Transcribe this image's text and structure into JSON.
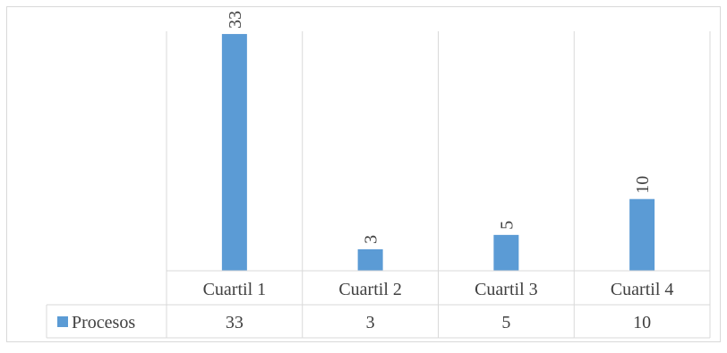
{
  "colors": {
    "bar": "#5b9bd5",
    "grid": "#d9d9d9",
    "frame": "#d9d9d9",
    "text": "#404040"
  },
  "chart_data": {
    "type": "bar",
    "title": "",
    "xlabel": "",
    "ylabel": "",
    "categories": [
      "Cuartil 1",
      "Cuartil 2",
      "Cuartil 3",
      "Cuartil 4"
    ],
    "series": [
      {
        "name": "Procesos",
        "values": [
          33,
          3,
          5,
          10
        ]
      }
    ],
    "ylim": [
      0,
      35
    ],
    "data_labels": true,
    "data_label_rotation": "vertical",
    "data_table": true,
    "legend": "in-table-row",
    "grid": "vertical-category-separators"
  }
}
